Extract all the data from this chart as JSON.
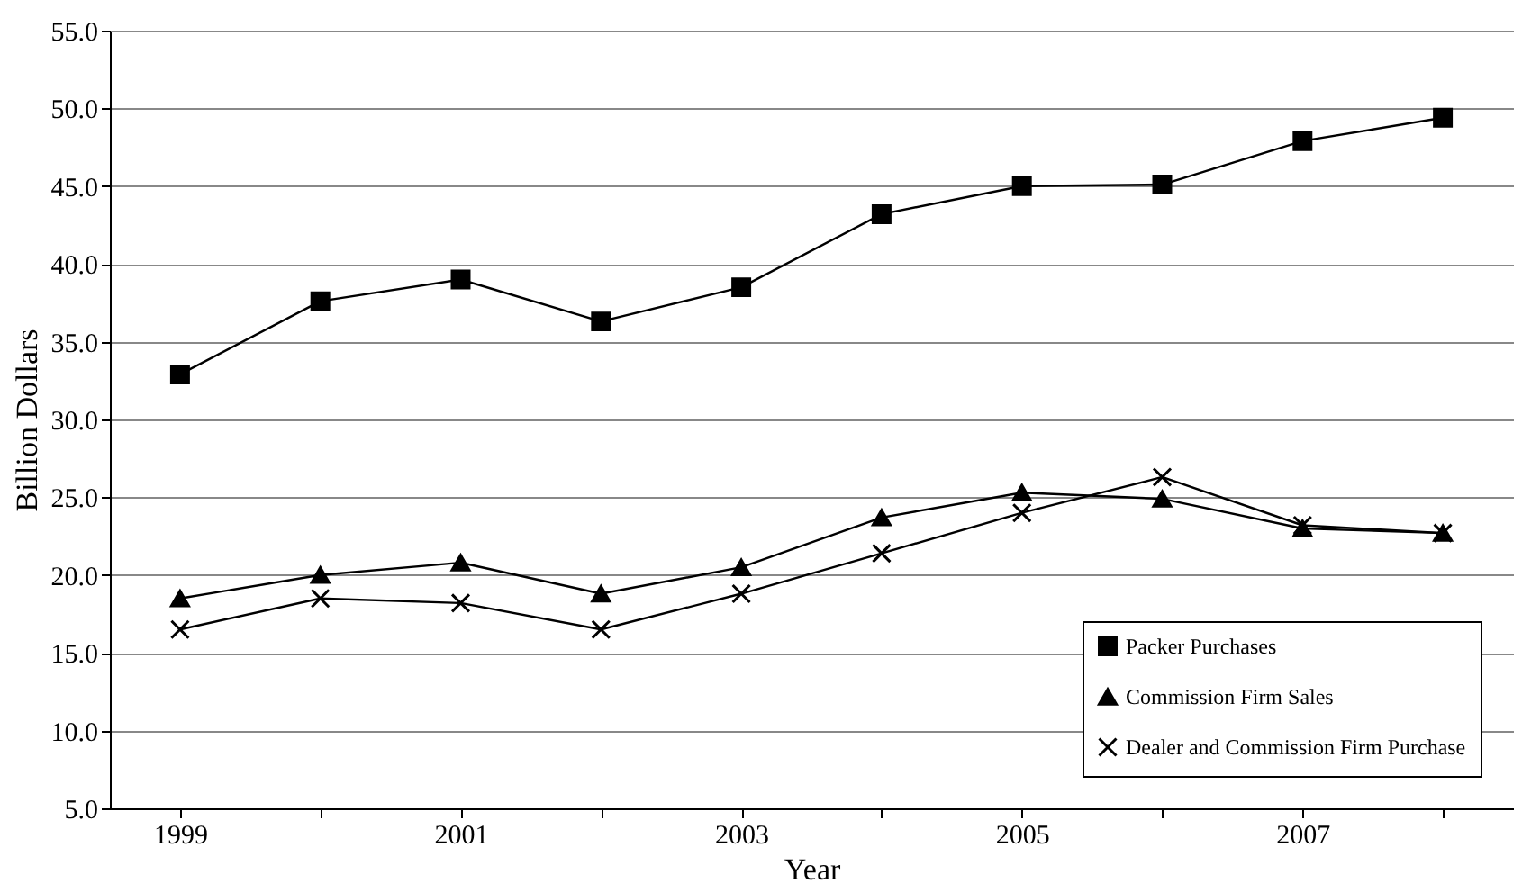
{
  "chart_data": {
    "type": "line",
    "xlabel": "Year",
    "ylabel": "Billion Dollars",
    "categories": [
      "1999",
      null,
      "2001",
      null,
      "2003",
      null,
      "2005",
      null,
      "2007",
      null
    ],
    "series": [
      {
        "name": "Packer Purchases",
        "color": "#000000",
        "marker": "square",
        "values": [
          32.9,
          37.6,
          39.0,
          36.3,
          38.5,
          43.2,
          45.0,
          45.1,
          47.9,
          49.4
        ]
      },
      {
        "name": "Commission Firm Sales",
        "color": "#000000",
        "marker": "triangle",
        "values": [
          18.5,
          20.0,
          20.8,
          18.8,
          20.5,
          23.7,
          25.3,
          24.9,
          23.0,
          22.7
        ]
      },
      {
        "name": "Dealer and Commission Firm Purchase",
        "color": "#000000",
        "marker": "cross",
        "values": [
          16.5,
          18.5,
          18.2,
          16.5,
          18.8,
          21.4,
          24.0,
          26.3,
          23.2,
          22.7
        ]
      }
    ],
    "ylim": [
      5,
      55
    ],
    "yticks": [
      {
        "value": 5,
        "label": "5.0"
      },
      {
        "value": 10,
        "label": "10.0"
      },
      {
        "value": 15,
        "label": "15.0"
      },
      {
        "value": 20,
        "label": "20.0"
      },
      {
        "value": 25,
        "label": "25.0"
      },
      {
        "value": 30,
        "label": "30.0"
      },
      {
        "value": 35,
        "label": "35.0"
      },
      {
        "value": 40,
        "label": "40.0"
      },
      {
        "value": 45,
        "label": "45.0"
      },
      {
        "value": 50,
        "label": "50.0"
      },
      {
        "value": 55,
        "label": "55.0"
      }
    ],
    "grid": "y",
    "legend": "bottom right",
    "line_style": "solid"
  }
}
